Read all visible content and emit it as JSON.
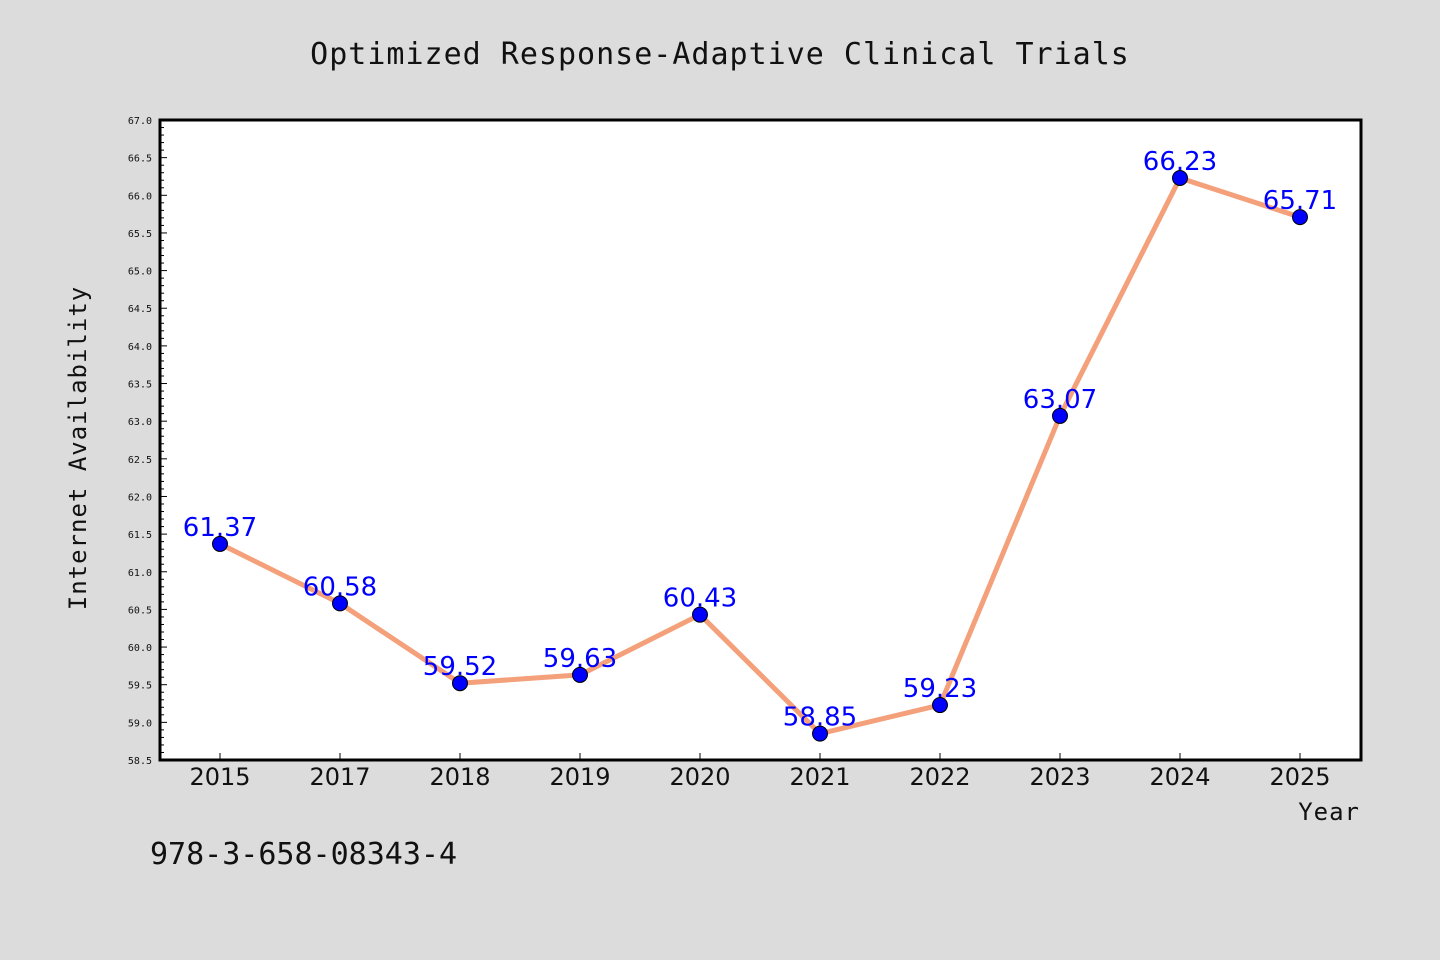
{
  "chart_data": {
    "type": "line",
    "title": "Optimized Response-Adaptive Clinical Trials",
    "xlabel": "Year",
    "ylabel": "Internet Availability",
    "categories": [
      "2015",
      "2017",
      "2018",
      "2019",
      "2020",
      "2021",
      "2022",
      "2023",
      "2024",
      "2025"
    ],
    "series": [
      {
        "values": [
          61.37,
          60.58,
          59.52,
          59.63,
          60.43,
          58.85,
          59.23,
          63.07,
          66.23,
          65.71
        ],
        "line_color": "#f4a07a",
        "marker_color": "#0000ff"
      }
    ],
    "data_labels": [
      "61.37",
      "60.58",
      "59.52",
      "59.63",
      "60.43",
      "58.85",
      "59.23",
      "63.07",
      "66.23",
      "65.71"
    ],
    "ylim": [
      58.5,
      67.0
    ],
    "ytick_step": 0.5,
    "ytick_labels": [
      "58.5",
      "59.0",
      "59.5",
      "60.0",
      "60.5",
      "61.0",
      "61.5",
      "62.0",
      "62.5",
      "63.0",
      "63.5",
      "64.0",
      "64.5",
      "65.0",
      "65.5",
      "66.0",
      "66.5",
      "67.0"
    ],
    "grid": false,
    "label_color": "#0000ff"
  },
  "footer": {
    "code": "978-3-658-08343-4"
  },
  "colors": {
    "background": "#dcdcdc",
    "plot_background": "#ffffff"
  }
}
